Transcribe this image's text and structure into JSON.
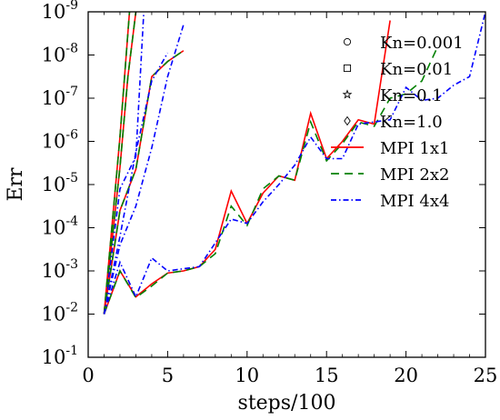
{
  "chart_data": {
    "type": "line",
    "title": "",
    "xlabel": "steps/100",
    "ylabel": "Err",
    "xlim": [
      0,
      25
    ],
    "ylim_log10": [
      -9,
      -1
    ],
    "yscale": "log",
    "grid": false,
    "legend_position": "top-right",
    "x_ticks": [
      0,
      5,
      10,
      15,
      20,
      25
    ],
    "x_tick_labels": [
      "0",
      "5",
      "10",
      "15",
      "20",
      "25"
    ],
    "y_ticks_log10": [
      -1,
      -2,
      -3,
      -4,
      -5,
      -6,
      -7,
      -8,
      -9
    ],
    "y_tick_base": "10",
    "y_tick_exponents": [
      "-1",
      "-2",
      "-3",
      "-4",
      "-5",
      "-6",
      "-7",
      "-8",
      "-9"
    ],
    "legend": [
      {
        "label": "Kn=0.001",
        "kind": "marker",
        "marker": "circle"
      },
      {
        "label": "Kn=0.01",
        "kind": "marker",
        "marker": "square"
      },
      {
        "label": "Kn=0.1",
        "kind": "marker",
        "marker": "star"
      },
      {
        "label": "Kn=1.0",
        "kind": "marker",
        "marker": "diamond"
      },
      {
        "label": "MPI 1x1",
        "kind": "line",
        "color": "#ff0000",
        "dash": ""
      },
      {
        "label": "MPI 2x2",
        "kind": "line",
        "color": "#008000",
        "dash": "9,6"
      },
      {
        "label": "MPI 4x4",
        "kind": "line",
        "color": "#0000ff",
        "dash": "6,3,1.5,3"
      }
    ],
    "series": [
      {
        "kn": "Kn=0.001",
        "mpi": "MPI 1x1",
        "marker": "circle",
        "color": "#ff0000",
        "dash": "",
        "x": [
          1,
          2,
          3,
          4,
          5,
          6,
          7,
          8,
          9,
          10,
          11,
          12,
          13,
          14,
          15,
          16,
          17,
          18,
          19
        ],
        "log_err": [
          -2.0,
          -3.0,
          -2.4,
          -2.7,
          -2.95,
          -3.0,
          -3.1,
          -3.5,
          -4.85,
          -4.1,
          -4.8,
          -5.2,
          -5.1,
          -6.65,
          -5.6,
          -6.0,
          -6.5,
          -6.4,
          -8.8
        ]
      },
      {
        "kn": "Kn=0.001",
        "mpi": "MPI 2x2",
        "marker": "circle",
        "color": "#008000",
        "dash": "9,6",
        "x": [
          1,
          2,
          3,
          4,
          5,
          6,
          7,
          8,
          9,
          10,
          11,
          12,
          13,
          14,
          15,
          16,
          17,
          18,
          19,
          20,
          21,
          22
        ],
        "log_err": [
          -2.0,
          -3.0,
          -2.38,
          -2.65,
          -2.95,
          -3.0,
          -3.1,
          -3.4,
          -4.5,
          -4.05,
          -4.9,
          -5.2,
          -5.1,
          -6.45,
          -5.55,
          -5.95,
          -6.45,
          -6.35,
          -7.0,
          -7.1,
          -7.4,
          -8.2
        ]
      },
      {
        "kn": "Kn=0.001",
        "mpi": "MPI 4x4",
        "marker": "circle",
        "color": "#0000ff",
        "dash": "6,3,1.5,3",
        "x": [
          1,
          2,
          3,
          4,
          5,
          6,
          7,
          8,
          9,
          10,
          11,
          12,
          13,
          14,
          15,
          16,
          17,
          18,
          19,
          20,
          21,
          22,
          23,
          24,
          25
        ],
        "log_err": [
          -2.0,
          -3.2,
          -2.4,
          -3.3,
          -3.0,
          -3.05,
          -3.1,
          -3.65,
          -4.2,
          -4.1,
          -4.6,
          -5.0,
          -5.45,
          -6.1,
          -5.6,
          -5.6,
          -6.4,
          -6.45,
          -6.5,
          -7.25,
          -6.95,
          -7.0,
          -7.3,
          -7.5,
          -9.0
        ]
      },
      {
        "kn": "Kn=0.01",
        "mpi": "MPI 1x1",
        "marker": "square",
        "color": "#ff0000",
        "dash": "",
        "x": [
          1,
          2,
          3,
          4,
          5,
          6
        ],
        "log_err": [
          -2.0,
          -4.4,
          -5.35,
          -7.5,
          -7.85,
          -8.1
        ]
      },
      {
        "kn": "Kn=0.01",
        "mpi": "MPI 2x2",
        "marker": "square",
        "color": "#008000",
        "dash": "9,6",
        "x": [
          1,
          2,
          3,
          4,
          5,
          6
        ],
        "log_err": [
          -2.0,
          -4.4,
          -5.35,
          -7.5,
          -7.85,
          -8.1
        ]
      },
      {
        "kn": "Kn=0.01",
        "mpi": "MPI 4x4",
        "marker": "square",
        "color": "#0000ff",
        "dash": "6,3,1.5,3",
        "x": [
          1,
          2,
          3,
          4,
          5,
          6
        ],
        "log_err": [
          -2.0,
          -3.6,
          -4.5,
          -5.85,
          -7.5,
          -8.7
        ]
      },
      {
        "kn": "Kn=0.1",
        "mpi": "MPI 1x1",
        "marker": "star",
        "color": "#ff0000",
        "dash": "",
        "x": [
          1,
          2,
          2.5,
          3
        ],
        "log_err": [
          -2.0,
          -5.4,
          -7.5,
          -9.0
        ]
      },
      {
        "kn": "Kn=0.1",
        "mpi": "MPI 2x2",
        "marker": "star",
        "color": "#008000",
        "dash": "9,6",
        "x": [
          1,
          2,
          2.5,
          3
        ],
        "log_err": [
          -2.0,
          -5.4,
          -7.5,
          -9.0
        ]
      },
      {
        "kn": "Kn=0.1",
        "mpi": "MPI 4x4",
        "marker": "star",
        "color": "#0000ff",
        "dash": "6,3,1.5,3",
        "x": [
          1,
          2,
          3,
          3.5
        ],
        "log_err": [
          -2.0,
          -4.9,
          -5.65,
          -9.0
        ]
      },
      {
        "kn": "Kn=1.0",
        "mpi": "MPI 1x1",
        "marker": "diamond",
        "color": "#ff0000",
        "dash": "",
        "x": [
          1,
          2,
          2.6
        ],
        "log_err": [
          -2.0,
          -6.1,
          -9.0
        ]
      },
      {
        "kn": "Kn=1.0",
        "mpi": "MPI 2x2",
        "marker": "diamond",
        "color": "#008000",
        "dash": "9,6",
        "x": [
          1,
          2,
          2.6
        ],
        "log_err": [
          -2.0,
          -6.1,
          -9.0
        ]
      },
      {
        "kn": "Kn=1.0",
        "mpi": "MPI 4x4",
        "marker": "diamond",
        "color": "#0000ff",
        "dash": "6,3,1.5,3",
        "x": [
          1,
          2,
          3,
          4,
          5
        ],
        "log_err": [
          -2.0,
          -3.8,
          -5.75,
          -7.4,
          -8.05
        ]
      }
    ]
  }
}
